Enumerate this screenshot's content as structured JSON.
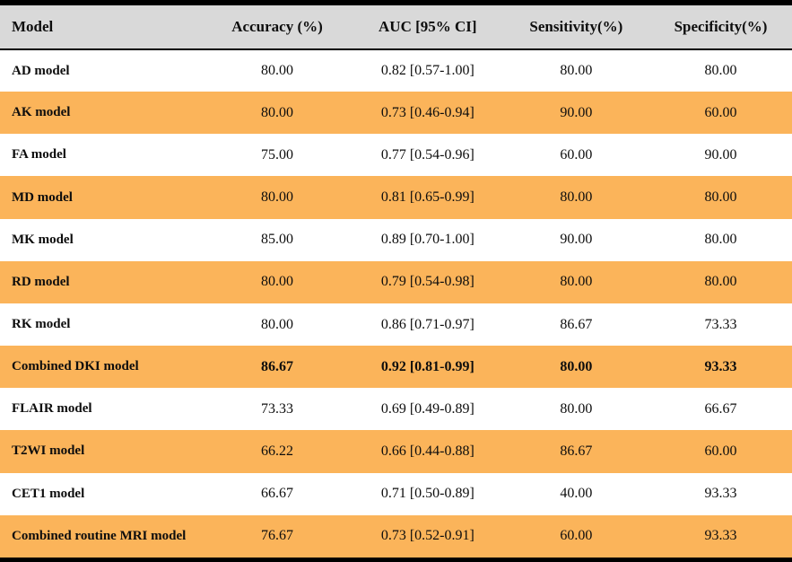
{
  "table": {
    "columns": {
      "model": "Model",
      "accuracy": "Accuracy (%)",
      "auc": "AUC [95% CI]",
      "sensitivity": "Sensitivity(%)",
      "specificity": "Specificity(%)"
    },
    "rows": [
      {
        "model": "AD model",
        "accuracy": "80.00",
        "auc": "0.82 [0.57-1.00]",
        "sensitivity": "80.00",
        "specificity": "80.00"
      },
      {
        "model": "AK model",
        "accuracy": "80.00",
        "auc": "0.73 [0.46-0.94]",
        "sensitivity": "90.00",
        "specificity": "60.00"
      },
      {
        "model": "FA model",
        "accuracy": "75.00",
        "auc": "0.77 [0.54-0.96]",
        "sensitivity": "60.00",
        "specificity": "90.00"
      },
      {
        "model": "MD model",
        "accuracy": "80.00",
        "auc": "0.81 [0.65-0.99]",
        "sensitivity": "80.00",
        "specificity": "80.00"
      },
      {
        "model": "MK model",
        "accuracy": "85.00",
        "auc": "0.89 [0.70-1.00]",
        "sensitivity": "90.00",
        "specificity": "80.00"
      },
      {
        "model": "RD model",
        "accuracy": "80.00",
        "auc": "0.79 [0.54-0.98]",
        "sensitivity": "80.00",
        "specificity": "80.00"
      },
      {
        "model": "RK model",
        "accuracy": "80.00",
        "auc": "0.86 [0.71-0.97]",
        "sensitivity": "86.67",
        "specificity": "73.33"
      },
      {
        "model": "Combined DKI model",
        "accuracy": "86.67",
        "auc": "0.92 [0.81-0.99]",
        "sensitivity": "80.00",
        "specificity": "93.33"
      },
      {
        "model": "FLAIR model",
        "accuracy": "73.33",
        "auc": "0.69 [0.49-0.89]",
        "sensitivity": "80.00",
        "specificity": "66.67"
      },
      {
        "model": "T2WI model",
        "accuracy": "66.22",
        "auc": "0.66 [0.44-0.88]",
        "sensitivity": "86.67",
        "specificity": "60.00"
      },
      {
        "model": "CET1 model",
        "accuracy": "66.67",
        "auc": "0.71 [0.50-0.89]",
        "sensitivity": "40.00",
        "specificity": "93.33"
      },
      {
        "model": "Combined routine MRI model",
        "accuracy": "76.67",
        "auc": "0.73 [0.52-0.91]",
        "sensitivity": "60.00",
        "specificity": "93.33"
      }
    ],
    "highlighted_row": "Combined DKI model"
  },
  "colors": {
    "row_highlight_orange": "#fbb45a",
    "header_background": "#d9d9d9",
    "border_black": "#000000"
  }
}
